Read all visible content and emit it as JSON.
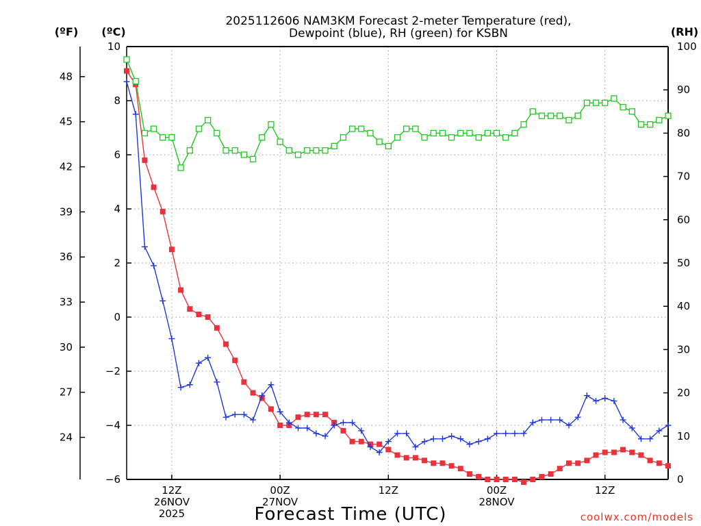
{
  "chart_data": {
    "type": "line",
    "title_lines": [
      "2025112606 NAM3KM Forecast 2-meter Temperature (red),",
      "Dewpoint (blue), RH (green) for KSBN"
    ],
    "xlabel": "Forecast Time (UTC)",
    "credit": "coolwx.com/models",
    "unit_f": "(ºF)",
    "unit_c": "(ºC)",
    "unit_rh": "(RH)",
    "x_range_hours": [
      7,
      67
    ],
    "x_ticks": [
      {
        "hour": 12,
        "lines": [
          "12Z",
          "26NOV",
          "2025"
        ]
      },
      {
        "hour": 24,
        "lines": [
          "00Z",
          "27NOV"
        ]
      },
      {
        "hour": 36,
        "lines": [
          "12Z"
        ]
      },
      {
        "hour": 48,
        "lines": [
          "00Z",
          "28NOV"
        ]
      },
      {
        "hour": 60,
        "lines": [
          "12Z"
        ]
      }
    ],
    "y_celsius": {
      "range": [
        -6,
        10
      ],
      "ticks": [
        "10",
        "8",
        "6",
        "4",
        "2",
        "0",
        "−2",
        "−4",
        "−6"
      ]
    },
    "y_fahrenheit": {
      "ticks": [
        "48",
        "45",
        "42",
        "39",
        "36",
        "33",
        "30",
        "27",
        "24"
      ]
    },
    "y_rh": {
      "range": [
        0,
        100
      ],
      "ticks": [
        "100",
        "90",
        "80",
        "70",
        "60",
        "50",
        "40",
        "30",
        "20",
        "10",
        "0"
      ]
    },
    "hours": [
      7,
      8,
      9,
      10,
      11,
      12,
      13,
      14,
      15,
      16,
      17,
      18,
      19,
      20,
      21,
      22,
      23,
      24,
      25,
      26,
      27,
      28,
      29,
      30,
      31,
      32,
      33,
      34,
      35,
      36,
      37,
      38,
      39,
      40,
      41,
      42,
      43,
      44,
      45,
      46,
      47,
      48,
      49,
      50,
      51,
      52,
      53,
      54,
      55,
      56,
      57,
      58,
      59,
      60,
      61,
      62,
      63,
      64,
      65,
      66,
      67
    ],
    "series": [
      {
        "name": "Temperature",
        "unit": "C",
        "color": "#e8323c",
        "marker": "square-filled",
        "values": [
          9.1,
          8.6,
          5.8,
          4.8,
          3.9,
          2.5,
          1.0,
          0.3,
          0.1,
          0.0,
          -0.4,
          -1.0,
          -1.6,
          -2.4,
          -2.8,
          -3.0,
          -3.4,
          -4.0,
          -4.0,
          -3.7,
          -3.6,
          -3.6,
          -3.6,
          -3.9,
          -4.2,
          -4.6,
          -4.6,
          -4.7,
          -4.7,
          -4.9,
          -5.1,
          -5.2,
          -5.2,
          -5.3,
          -5.4,
          -5.4,
          -5.5,
          -5.6,
          -5.8,
          -5.9,
          -6.0,
          -6.0,
          -6.0,
          -6.0,
          -6.1,
          -6.0,
          -5.9,
          -5.8,
          -5.6,
          -5.4,
          -5.4,
          -5.3,
          -5.1,
          -5.0,
          -5.0,
          -4.9,
          -5.0,
          -5.1,
          -5.3,
          -5.4,
          -5.5
        ]
      },
      {
        "name": "Dewpoint",
        "unit": "C",
        "color": "#2038d8",
        "marker": "plus",
        "values": [
          8.7,
          7.5,
          2.6,
          1.9,
          0.6,
          -0.8,
          -2.6,
          -2.5,
          -1.7,
          -1.5,
          -2.4,
          -3.7,
          -3.6,
          -3.6,
          -3.8,
          -2.9,
          -2.5,
          -3.5,
          -3.9,
          -4.1,
          -4.1,
          -4.3,
          -4.4,
          -4.0,
          -3.9,
          -3.9,
          -4.2,
          -4.8,
          -5.0,
          -4.6,
          -4.3,
          -4.3,
          -4.8,
          -4.6,
          -4.5,
          -4.5,
          -4.4,
          -4.5,
          -4.7,
          -4.6,
          -4.5,
          -4.3,
          -4.3,
          -4.3,
          -4.3,
          -3.9,
          -3.8,
          -3.8,
          -3.8,
          -4.0,
          -3.7,
          -2.9,
          -3.1,
          -3.0,
          -3.1,
          -3.8,
          -4.1,
          -4.5,
          -4.5,
          -4.2,
          -4.0
        ]
      },
      {
        "name": "RH",
        "unit": "%",
        "color": "#22c622",
        "marker": "square-open",
        "values": [
          97,
          92,
          80,
          81,
          79,
          79,
          72,
          76,
          81,
          83,
          80,
          76,
          76,
          75,
          74,
          79,
          82,
          78,
          76,
          75,
          76,
          76,
          76,
          77,
          79,
          81,
          81,
          80,
          78,
          77,
          79,
          81,
          81,
          79,
          80,
          80,
          79,
          80,
          80,
          79,
          80,
          80,
          79,
          80,
          82,
          85,
          84,
          84,
          84,
          83,
          84,
          87,
          87,
          87,
          88,
          86,
          85,
          82,
          82,
          83,
          84
        ]
      }
    ]
  }
}
